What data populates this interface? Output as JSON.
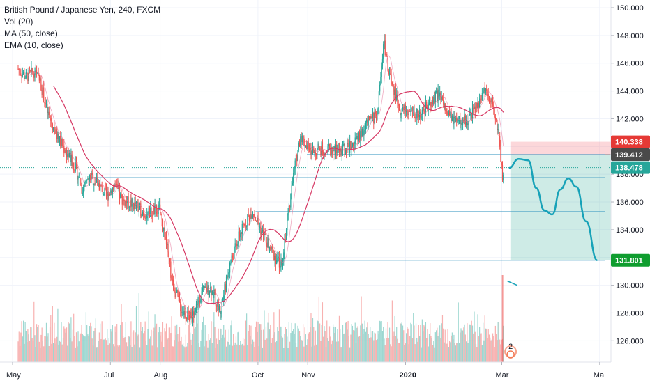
{
  "legend": {
    "symbol": "British Pound / Japanese Yen, 240, FXCM",
    "vol": "Vol (20)",
    "ma": "MA (50, close)",
    "ema": "EMA (10, close)"
  },
  "chart_data": {
    "type": "candlestick",
    "ylim": [
      124.5,
      150.5
    ],
    "yticks": [
      "150.000",
      "148.000",
      "146.000",
      "144.000",
      "142.000",
      "140.000",
      "138.000",
      "136.000",
      "134.000",
      "132.000",
      "130.000",
      "128.000",
      "126.000"
    ],
    "xticks": [
      {
        "label": "May",
        "day": 0
      },
      {
        "label": "Jul",
        "day": 61
      },
      {
        "label": "Aug",
        "day": 92
      },
      {
        "label": "Oct",
        "day": 153
      },
      {
        "label": "Nov",
        "day": 184
      },
      {
        "label": "2020",
        "day": 245,
        "bold": true
      },
      {
        "label": "Mar",
        "day": 305
      },
      {
        "label": "Ma",
        "day": 366
      }
    ],
    "price_path": [
      {
        "day": 0,
        "price": 145.6
      },
      {
        "day": 5,
        "price": 145.0
      },
      {
        "day": 10,
        "price": 145.4
      },
      {
        "day": 14,
        "price": 144.6
      },
      {
        "day": 18,
        "price": 142.5
      },
      {
        "day": 24,
        "price": 140.8
      },
      {
        "day": 30,
        "price": 139.6
      },
      {
        "day": 36,
        "price": 138.4
      },
      {
        "day": 40,
        "price": 136.8
      },
      {
        "day": 45,
        "price": 137.8
      },
      {
        "day": 50,
        "price": 137.3
      },
      {
        "day": 55,
        "price": 136.4
      },
      {
        "day": 60,
        "price": 137.2
      },
      {
        "day": 65,
        "price": 136.1
      },
      {
        "day": 72,
        "price": 135.8
      },
      {
        "day": 80,
        "price": 135.1
      },
      {
        "day": 88,
        "price": 135.5
      },
      {
        "day": 92,
        "price": 133.3
      },
      {
        "day": 96,
        "price": 130.2
      },
      {
        "day": 102,
        "price": 128.2
      },
      {
        "day": 108,
        "price": 127.6
      },
      {
        "day": 114,
        "price": 129.4
      },
      {
        "day": 120,
        "price": 129.8
      },
      {
        "day": 126,
        "price": 128.1
      },
      {
        "day": 132,
        "price": 131.5
      },
      {
        "day": 138,
        "price": 133.6
      },
      {
        "day": 142,
        "price": 134.6
      },
      {
        "day": 146,
        "price": 135.4
      },
      {
        "day": 152,
        "price": 133.8
      },
      {
        "day": 158,
        "price": 132.4
      },
      {
        "day": 164,
        "price": 131.4
      },
      {
        "day": 168,
        "price": 134.8
      },
      {
        "day": 172,
        "price": 138.2
      },
      {
        "day": 176,
        "price": 140.8
      },
      {
        "day": 182,
        "price": 139.6
      },
      {
        "day": 190,
        "price": 139.9
      },
      {
        "day": 198,
        "price": 139.7
      },
      {
        "day": 206,
        "price": 139.9
      },
      {
        "day": 212,
        "price": 140.6
      },
      {
        "day": 218,
        "price": 141.7
      },
      {
        "day": 224,
        "price": 142.4
      },
      {
        "day": 228,
        "price": 147.6
      },
      {
        "day": 232,
        "price": 144.8
      },
      {
        "day": 238,
        "price": 142.7
      },
      {
        "day": 244,
        "price": 142.5
      },
      {
        "day": 250,
        "price": 142.3
      },
      {
        "day": 256,
        "price": 143.0
      },
      {
        "day": 262,
        "price": 143.8
      },
      {
        "day": 268,
        "price": 142.2
      },
      {
        "day": 274,
        "price": 141.6
      },
      {
        "day": 280,
        "price": 141.9
      },
      {
        "day": 286,
        "price": 142.9
      },
      {
        "day": 292,
        "price": 144.3
      },
      {
        "day": 296,
        "price": 142.9
      },
      {
        "day": 300,
        "price": 140.4
      },
      {
        "day": 302,
        "price": 137.8
      },
      {
        "day": 303,
        "price": 138.5
      }
    ],
    "horizontal_lines": [
      {
        "from_day": 180,
        "to_day": 366,
        "price": 139.412
      },
      {
        "from_day": 45,
        "to_day": 366,
        "price": 137.75
      },
      {
        "from_day": 148,
        "to_day": 366,
        "price": 135.3
      },
      {
        "from_day": 96,
        "to_day": 366,
        "price": 131.8
      }
    ],
    "current_price_line": 138.478,
    "projection_path": [
      {
        "day": 306,
        "price": 138.45
      },
      {
        "day": 312,
        "price": 139.1
      },
      {
        "day": 318,
        "price": 139.0
      },
      {
        "day": 323,
        "price": 137.0
      },
      {
        "day": 328,
        "price": 135.4
      },
      {
        "day": 333,
        "price": 135.1
      },
      {
        "day": 338,
        "price": 136.9
      },
      {
        "day": 343,
        "price": 137.7
      },
      {
        "day": 348,
        "price": 137.1
      },
      {
        "day": 354,
        "price": 134.6
      },
      {
        "day": 361,
        "price": 131.8
      }
    ],
    "position": {
      "from_day": 306,
      "to_day": 366,
      "stop": 140.338,
      "entry": 139.412,
      "target": 131.801
    },
    "price_labels": [
      {
        "text": "140.338",
        "price": 140.338,
        "color": "#e53935"
      },
      {
        "text": "139.412",
        "price": 139.412,
        "color": "#4a4a4a"
      },
      {
        "text": "138.478",
        "price": 138.478,
        "color": "#26a69a"
      },
      {
        "text": "131.801",
        "price": 131.801,
        "color": "#0f9d2f"
      }
    ],
    "colors": {
      "up": "#26a69a",
      "down": "#ef5350",
      "ma": "#d63864",
      "line": "#2a8fbd",
      "stop_zone": "rgba(242,54,69,0.2)",
      "target_zone": "rgba(8,153,129,0.2)",
      "projection": "#17a2b8"
    },
    "event_badge": "2"
  }
}
